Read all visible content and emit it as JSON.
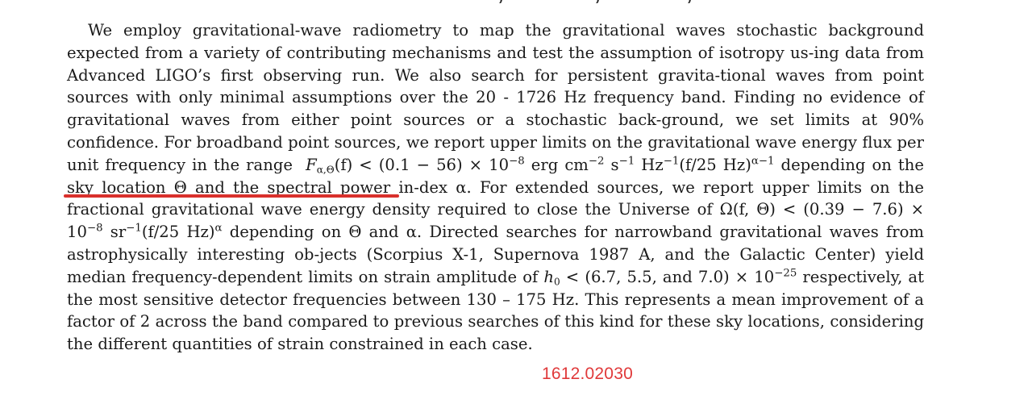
{
  "abstract": {
    "s1": "We employ gravitational-wave radiometry to map the gravitational waves stochastic background expected from a variety of contributing mechanisms and test the assumption of isotropy us-",
    "s2": "ing data from Advanced LIGO’s first observing run.  We also search for persistent gravita-",
    "s3": "tional waves from point sources with only minimal assumptions over the 20 - 1726 Hz frequency band.  Finding no evidence of gravitational waves from either point sources or a stochastic back-",
    "s4": "ground, we set limits at 90% confidence.  For broadband point sources, we report upper limits on the gravitational wave energy flux per unit frequency in the range",
    "flux_expr": "F",
    "flux_sub": "α,Θ",
    "flux_arg": "(f) < (0.1 − 56) × 10",
    "flux_exp": "−8",
    "flux_units_a": " erg cm",
    "flux_units_a_exp": "−2",
    "flux_units_b": " s",
    "flux_units_b_exp": "−1",
    "flux_units_c": " Hz",
    "flux_units_c_exp": "−1",
    "flux_units_d": "(f/25 Hz)",
    "flux_units_d_exp": "α−1",
    "s5": " depending on the sky location Θ and the spectral power in-",
    "s6": "dex α.  For extended sources, we report upper limits on the fractional gravitational wave energy density required to close the Universe of",
    "omega_expr": " Ω(f, Θ) < (0.39 − 7.6) × 10",
    "omega_exp": "−8",
    "omega_units": " sr",
    "omega_units_exp": "−1",
    "omega_units_b": "(f/25 Hz)",
    "omega_units_b_exp": "α",
    "s7": " depending on Θ and α.  Directed searches for narrowband gravitational waves from astrophysically interesting ob-",
    "s8": "jects (Scorpius X-1, Supernova 1987 A, and the Galactic Center) yield median frequency-dependent limits on strain amplitude of",
    "h0": " h",
    "h0_sub": "0",
    "h0_expr": " < (6.7, 5.5, and 7.0) × 10",
    "h0_exp": "−25",
    "s9": " respectively, at the most sensitive detector frequencies between 130 – 175 Hz.  This represents a mean improvement of a factor of 2 across the band compared to previous searches of this kind for these sky locations, considering the different quantities of strain constrained in each case."
  },
  "annotation": {
    "arxiv_id": "1612.02030",
    "underline_color": "#d9302c",
    "text_color": "#e0393a"
  }
}
